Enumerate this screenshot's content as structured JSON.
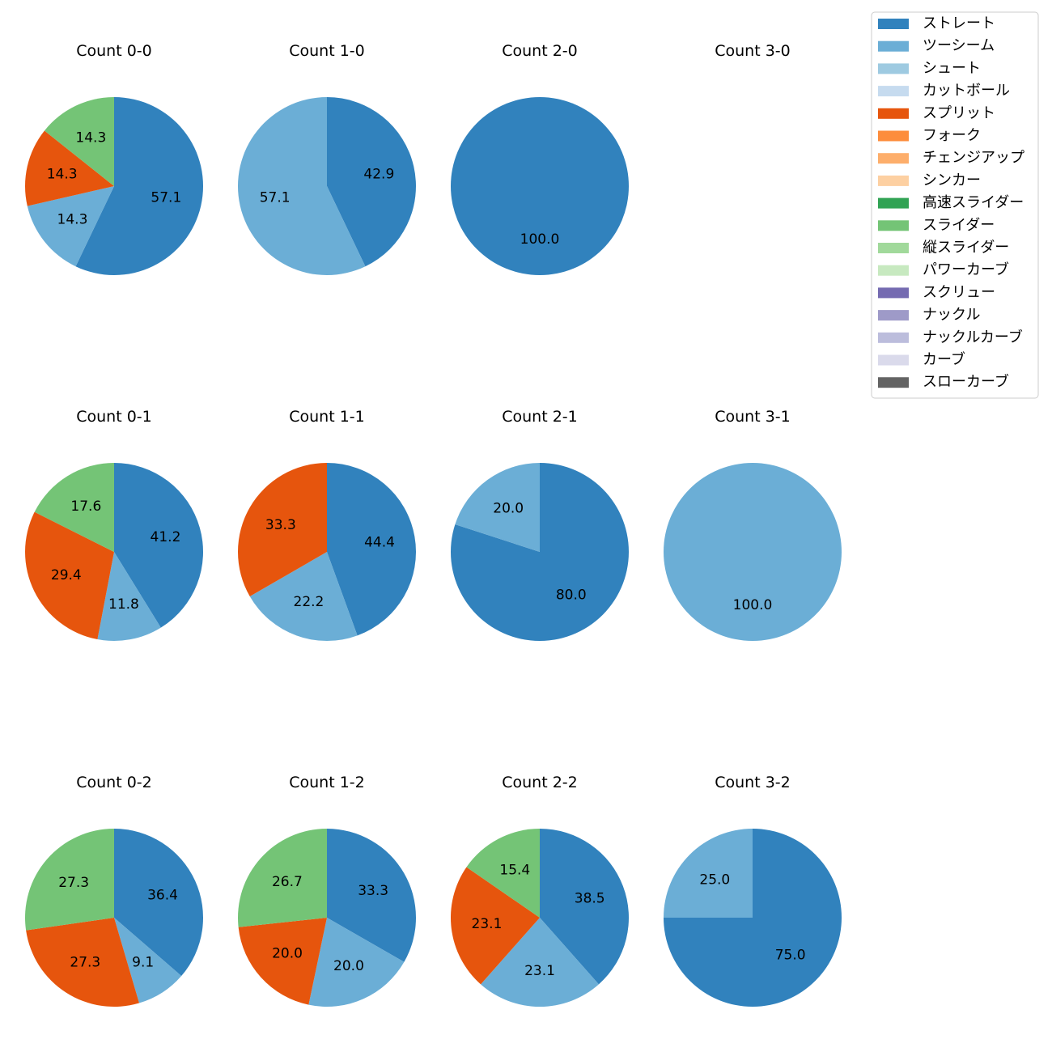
{
  "chart_data": {
    "type": "pie",
    "legend_position": "top-right",
    "legend": [
      {
        "name": "ストレート",
        "color": "#3182bd"
      },
      {
        "name": "ツーシーム",
        "color": "#6baed6"
      },
      {
        "name": "シュート",
        "color": "#9ecae1"
      },
      {
        "name": "カットボール",
        "color": "#c6dbef"
      },
      {
        "name": "スプリット",
        "color": "#e6550d"
      },
      {
        "name": "フォーク",
        "color": "#fd8d3c"
      },
      {
        "name": "チェンジアップ",
        "color": "#fdae6b"
      },
      {
        "name": "シンカー",
        "color": "#fdd0a2"
      },
      {
        "name": "高速スライダー",
        "color": "#31a354"
      },
      {
        "name": "スライダー",
        "color": "#74c476"
      },
      {
        "name": "縦スライダー",
        "color": "#a1d99b"
      },
      {
        "name": "パワーカーブ",
        "color": "#c7e9c0"
      },
      {
        "name": "スクリュー",
        "color": "#756bb1"
      },
      {
        "name": "ナックル",
        "color": "#9e9ac8"
      },
      {
        "name": "ナックルカーブ",
        "color": "#bcbddc"
      },
      {
        "name": "カーブ",
        "color": "#dadaeb"
      },
      {
        "name": "スローカーブ",
        "color": "#636363"
      }
    ],
    "pies": [
      {
        "title": "Count 0-0",
        "slices": [
          {
            "pitch": "ストレート",
            "value": 57.1
          },
          {
            "pitch": "ツーシーム",
            "value": 14.3
          },
          {
            "pitch": "スプリット",
            "value": 14.3
          },
          {
            "pitch": "スライダー",
            "value": 14.3
          }
        ]
      },
      {
        "title": "Count 1-0",
        "slices": [
          {
            "pitch": "ストレート",
            "value": 42.9
          },
          {
            "pitch": "ツーシーム",
            "value": 57.1
          }
        ]
      },
      {
        "title": "Count 2-0",
        "slices": [
          {
            "pitch": "ストレート",
            "value": 100.0
          }
        ]
      },
      {
        "title": "Count 3-0",
        "slices": []
      },
      {
        "title": "Count 0-1",
        "slices": [
          {
            "pitch": "ストレート",
            "value": 41.2
          },
          {
            "pitch": "ツーシーム",
            "value": 11.8
          },
          {
            "pitch": "スプリット",
            "value": 29.4
          },
          {
            "pitch": "スライダー",
            "value": 17.6
          }
        ]
      },
      {
        "title": "Count 1-1",
        "slices": [
          {
            "pitch": "ストレート",
            "value": 44.4
          },
          {
            "pitch": "ツーシーム",
            "value": 22.2
          },
          {
            "pitch": "スプリット",
            "value": 33.3
          }
        ]
      },
      {
        "title": "Count 2-1",
        "slices": [
          {
            "pitch": "ストレート",
            "value": 80.0
          },
          {
            "pitch": "ツーシーム",
            "value": 20.0
          }
        ]
      },
      {
        "title": "Count 3-1",
        "slices": [
          {
            "pitch": "ツーシーム",
            "value": 100.0
          }
        ]
      },
      {
        "title": "Count 0-2",
        "slices": [
          {
            "pitch": "ストレート",
            "value": 36.4
          },
          {
            "pitch": "ツーシーム",
            "value": 9.1
          },
          {
            "pitch": "スプリット",
            "value": 27.3
          },
          {
            "pitch": "スライダー",
            "value": 27.3
          }
        ]
      },
      {
        "title": "Count 1-2",
        "slices": [
          {
            "pitch": "ストレート",
            "value": 33.3
          },
          {
            "pitch": "ツーシーム",
            "value": 20.0
          },
          {
            "pitch": "スプリット",
            "value": 20.0
          },
          {
            "pitch": "スライダー",
            "value": 26.7
          }
        ]
      },
      {
        "title": "Count 2-2",
        "slices": [
          {
            "pitch": "ストレート",
            "value": 38.5
          },
          {
            "pitch": "ツーシーム",
            "value": 23.1
          },
          {
            "pitch": "スプリット",
            "value": 23.1
          },
          {
            "pitch": "スライダー",
            "value": 15.4
          }
        ]
      },
      {
        "title": "Count 3-2",
        "slices": [
          {
            "pitch": "ストレート",
            "value": 75.0
          },
          {
            "pitch": "ツーシーム",
            "value": 25.0
          }
        ]
      }
    ]
  }
}
